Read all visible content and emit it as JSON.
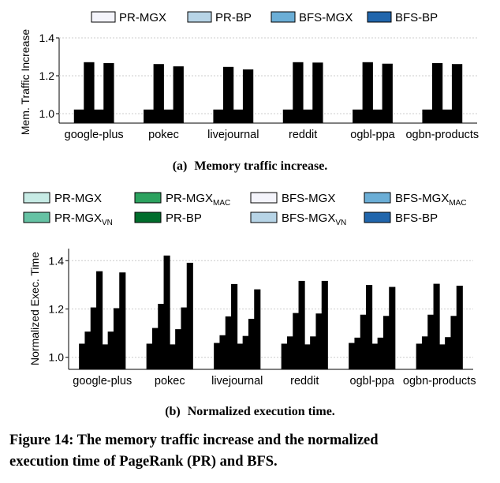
{
  "figure_caption": {
    "text": "Figure 14: The memory traffic increase and the normalized execution time of PageRank (PR) and BFS.",
    "line1": "Figure 14: The memory traffic increase and the normalized",
    "line2": "execution time of PageRank (PR) and BFS."
  },
  "colors": {
    "PR-MGX_a": "#f4f4fb",
    "PR-BP_a": "#b7d4e6",
    "BFS-MGX_a": "#6baed6",
    "BFS-BP_a": "#2166ac",
    "PR-MGX_b": "#c7ebe5",
    "PR-MGX_VN": "#66c2a4",
    "PR-MGX_MAC": "#2ca25f",
    "PR-BP_b": "#006d2c",
    "BFS-MGX_b": "#f4f4fb",
    "BFS-MGX_VN": "#b7d4e6",
    "BFS-MGX_MAC": "#6baed6",
    "BFS-BP_b": "#2166ac"
  },
  "chart_data": [
    {
      "type": "bar",
      "caption": "(a) Memory traffic increase.",
      "caption_prefix": "(a)",
      "caption_text": "Memory traffic increase.",
      "ylabel": "Mem. Traffic Increase",
      "xlabel": "",
      "ylim": [
        0.95,
        1.4
      ],
      "yticks": [
        "1.0",
        "1.2",
        "1.4"
      ],
      "ytick_values": [
        1.0,
        1.2,
        1.4
      ],
      "categories": [
        "google-plus",
        "pokec",
        "livejournal",
        "reddit",
        "ogbl-ppa",
        "ogbn-products"
      ],
      "legend_position": "top",
      "series": [
        {
          "name": "PR-MGX",
          "sub": "",
          "values": [
            1.02,
            1.02,
            1.02,
            1.02,
            1.02,
            1.02
          ]
        },
        {
          "name": "PR-BP",
          "sub": "",
          "values": [
            1.27,
            1.26,
            1.245,
            1.27,
            1.27,
            1.265
          ]
        },
        {
          "name": "BFS-MGX",
          "sub": "",
          "values": [
            1.02,
            1.02,
            1.02,
            1.02,
            1.02,
            1.02
          ]
        },
        {
          "name": "BFS-BP",
          "sub": "",
          "values": [
            1.265,
            1.248,
            1.232,
            1.268,
            1.262,
            1.26
          ]
        }
      ]
    },
    {
      "type": "bar",
      "caption": "(b) Normalized execution time.",
      "caption_prefix": "(b)",
      "caption_text": "Normalized execution time.",
      "ylabel": "Normalized Exec. Time",
      "xlabel": "",
      "ylim": [
        0.95,
        1.45
      ],
      "yticks": [
        "1.0",
        "1.2",
        "1.4"
      ],
      "ytick_values": [
        1.0,
        1.2,
        1.4
      ],
      "categories": [
        "google-plus",
        "pokec",
        "livejournal",
        "reddit",
        "ogbl-ppa",
        "ogbn-products"
      ],
      "legend_position": "top",
      "series": [
        {
          "name": "PR-MGX",
          "sub": "",
          "values": [
            1.055,
            1.055,
            1.058,
            1.055,
            1.058,
            1.055
          ]
        },
        {
          "name": "PR-MGX",
          "sub": "VN",
          "values": [
            1.105,
            1.12,
            1.09,
            1.085,
            1.08,
            1.085
          ]
        },
        {
          "name": "PR-MGX",
          "sub": "MAC",
          "values": [
            1.205,
            1.22,
            1.168,
            1.182,
            1.175,
            1.175
          ]
        },
        {
          "name": "PR-BP",
          "sub": "",
          "values": [
            1.355,
            1.42,
            1.302,
            1.315,
            1.298,
            1.303
          ]
        },
        {
          "name": "BFS-MGX",
          "sub": "",
          "values": [
            1.052,
            1.052,
            1.055,
            1.052,
            1.055,
            1.052
          ]
        },
        {
          "name": "BFS-MGX",
          "sub": "VN",
          "values": [
            1.105,
            1.115,
            1.087,
            1.085,
            1.08,
            1.082
          ]
        },
        {
          "name": "BFS-MGX",
          "sub": "MAC",
          "values": [
            1.202,
            1.205,
            1.158,
            1.18,
            1.17,
            1.17
          ]
        },
        {
          "name": "BFS-BP",
          "sub": "",
          "values": [
            1.35,
            1.39,
            1.28,
            1.315,
            1.29,
            1.295
          ]
        }
      ]
    }
  ]
}
